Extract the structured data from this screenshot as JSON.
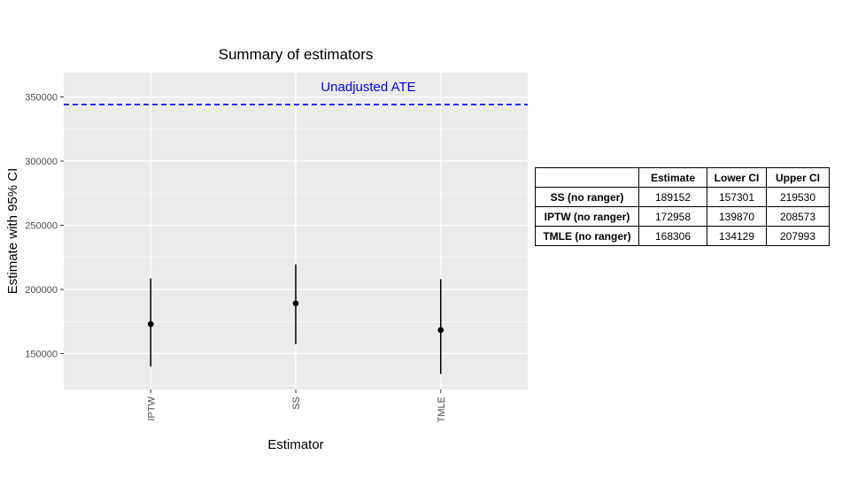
{
  "chart_data": {
    "type": "scatter",
    "title": "Summary of estimators",
    "xlabel": "Estimator",
    "ylabel": "Estimate with 95% CI",
    "categories": [
      "IPTW",
      "SS",
      "TMLE"
    ],
    "series": [
      {
        "points": [
          {
            "x": "IPTW",
            "y": 172958,
            "lower": 139870,
            "upper": 208573
          },
          {
            "x": "SS",
            "y": 189152,
            "lower": 157301,
            "upper": 219530
          },
          {
            "x": "TMLE",
            "y": 168306,
            "lower": 134129,
            "upper": 207993
          }
        ]
      }
    ],
    "ylim": [
      122000,
      369000
    ],
    "yticks": [
      150000,
      200000,
      250000,
      300000,
      350000
    ],
    "reference_line": {
      "label": "Unadjusted ATE",
      "y": 344000,
      "color": "#0000ff",
      "style": "dashed"
    },
    "grid": true,
    "panel_background": "#ebebeb"
  },
  "table": {
    "headers": [
      "",
      "Estimate",
      "Lower CI",
      "Upper CI"
    ],
    "rows": [
      [
        "SS (no ranger)",
        "189152",
        "157301",
        "219530"
      ],
      [
        "IPTW (no ranger)",
        "172958",
        "139870",
        "208573"
      ],
      [
        "TMLE (no ranger)",
        "168306",
        "134129",
        "207993"
      ]
    ]
  }
}
